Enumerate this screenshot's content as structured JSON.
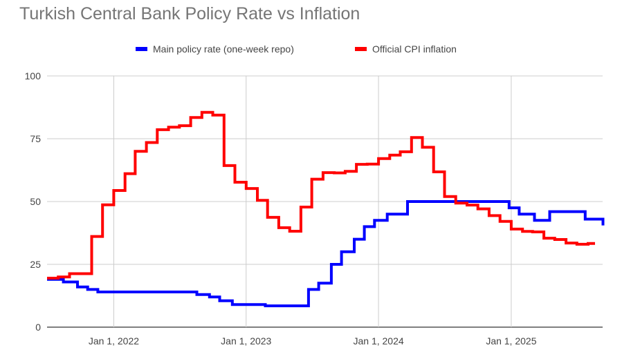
{
  "chart_data": {
    "type": "line",
    "title": "Turkish Central Bank Policy Rate vs Inflation",
    "xlabel": "",
    "ylabel": "",
    "ylim": [
      0,
      100
    ],
    "yticks": [
      "0",
      "25",
      "50",
      "75",
      "100"
    ],
    "xlim": [
      "2021-07-01",
      "2025-09-10"
    ],
    "xticks": [
      {
        "date": "2022-01-01",
        "label": "Jan 1, 2022"
      },
      {
        "date": "2023-01-01",
        "label": "Jan 1, 2023"
      },
      {
        "date": "2024-01-01",
        "label": "Jan 1, 2024"
      },
      {
        "date": "2025-01-01",
        "label": "Jan 1, 2025"
      }
    ],
    "grid": true,
    "legend_position": "top",
    "step": true,
    "series": [
      {
        "name": "Main policy rate (one-week repo)",
        "color": "#0000ff",
        "points": [
          [
            "2021-07-01",
            19
          ],
          [
            "2021-08-15",
            18
          ],
          [
            "2021-09-23",
            16
          ],
          [
            "2021-10-21",
            15
          ],
          [
            "2021-11-18",
            14
          ],
          [
            "2022-08-18",
            13
          ],
          [
            "2022-09-22",
            12
          ],
          [
            "2022-10-20",
            10.5
          ],
          [
            "2022-11-24",
            9
          ],
          [
            "2023-02-23",
            8.5
          ],
          [
            "2023-06-22",
            15
          ],
          [
            "2023-07-20",
            17.5
          ],
          [
            "2023-08-24",
            25
          ],
          [
            "2023-09-21",
            30
          ],
          [
            "2023-10-26",
            35
          ],
          [
            "2023-11-23",
            40
          ],
          [
            "2023-12-21",
            42.5
          ],
          [
            "2024-01-25",
            45
          ],
          [
            "2024-03-21",
            50
          ],
          [
            "2024-12-26",
            47.5
          ],
          [
            "2025-01-23",
            45
          ],
          [
            "2025-03-06",
            42.5
          ],
          [
            "2025-04-17",
            46
          ],
          [
            "2025-07-24",
            43
          ],
          [
            "2025-09-11",
            40.5
          ]
        ]
      },
      {
        "name": "Official CPI inflation",
        "color": "#ff0000",
        "points": [
          [
            "2021-07-01",
            19.5
          ],
          [
            "2021-08-01",
            20
          ],
          [
            "2021-09-01",
            21.3
          ],
          [
            "2021-11-01",
            36.1
          ],
          [
            "2021-12-01",
            48.7
          ],
          [
            "2022-01-01",
            54.4
          ],
          [
            "2022-02-01",
            61.1
          ],
          [
            "2022-03-01",
            69.97
          ],
          [
            "2022-04-01",
            73.5
          ],
          [
            "2022-05-01",
            78.6
          ],
          [
            "2022-06-01",
            79.6
          ],
          [
            "2022-07-01",
            80.2
          ],
          [
            "2022-08-01",
            83.45
          ],
          [
            "2022-09-01",
            85.5
          ],
          [
            "2022-10-01",
            84.4
          ],
          [
            "2022-11-01",
            64.3
          ],
          [
            "2022-12-01",
            57.7
          ],
          [
            "2023-01-01",
            55.2
          ],
          [
            "2023-02-01",
            50.5
          ],
          [
            "2023-03-01",
            43.7
          ],
          [
            "2023-04-01",
            39.6
          ],
          [
            "2023-05-01",
            38.2
          ],
          [
            "2023-06-01",
            47.8
          ],
          [
            "2023-07-01",
            58.9
          ],
          [
            "2023-08-01",
            61.5
          ],
          [
            "2023-09-01",
            61.4
          ],
          [
            "2023-10-01",
            62
          ],
          [
            "2023-11-01",
            64.8
          ],
          [
            "2023-12-01",
            64.9
          ],
          [
            "2024-01-01",
            67.1
          ],
          [
            "2024-02-01",
            68.5
          ],
          [
            "2024-03-01",
            69.8
          ],
          [
            "2024-04-01",
            75.5
          ],
          [
            "2024-05-01",
            71.6
          ],
          [
            "2024-06-01",
            61.8
          ],
          [
            "2024-07-01",
            51.97
          ],
          [
            "2024-08-01",
            49.4
          ],
          [
            "2024-09-01",
            48.6
          ],
          [
            "2024-10-01",
            47.1
          ],
          [
            "2024-11-01",
            44.4
          ],
          [
            "2024-12-01",
            42.1
          ],
          [
            "2025-01-01",
            39.05
          ],
          [
            "2025-02-01",
            38.1
          ],
          [
            "2025-03-01",
            37.9
          ],
          [
            "2025-04-01",
            35.4
          ],
          [
            "2025-05-01",
            34.9
          ],
          [
            "2025-06-01",
            33.5
          ],
          [
            "2025-07-01",
            33
          ],
          [
            "2025-08-01",
            33.3
          ],
          [
            "2025-08-20",
            33.3
          ]
        ]
      }
    ]
  }
}
